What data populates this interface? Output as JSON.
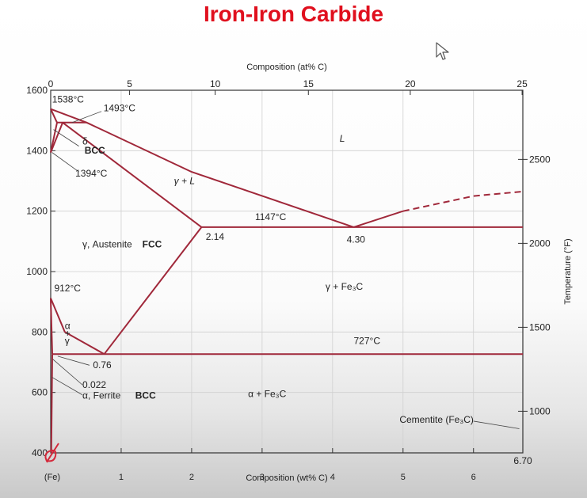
{
  "slide": {
    "title": "Iron-Iron Carbide"
  },
  "colors": {
    "title": "#e0101e",
    "curve": "#a0283a",
    "axis": "#333333",
    "grid": "#d0d0d0",
    "cursor_icon": "arrow-cursor-icon"
  },
  "chart_data": {
    "type": "line",
    "title": "",
    "xlabel": "Composition (wt% C)",
    "x2label": "Composition (at% C)",
    "ylabel": "",
    "y2label": "Temperature (°F)",
    "xlim": [
      0,
      6.7
    ],
    "ylim": [
      400,
      1600
    ],
    "x_ticks": [
      0,
      1,
      2,
      3,
      4,
      5,
      6
    ],
    "x_tick_labels": [
      "(Fe)",
      "1",
      "2",
      "3",
      "4",
      "5",
      "6"
    ],
    "x_end_label": "6.70",
    "y_ticks": [
      400,
      600,
      800,
      1000,
      1200,
      1400,
      1600
    ],
    "x2_ticks": [
      0,
      5,
      10,
      15,
      20,
      25
    ],
    "y2_ticks": [
      1000,
      1500,
      2000,
      2500
    ],
    "grid": true,
    "series": [
      {
        "id": "liquidus-left",
        "points": [
          [
            0,
            1538
          ],
          [
            0.51,
            1493
          ],
          [
            2.0,
            1330
          ],
          [
            4.3,
            1147
          ]
        ]
      },
      {
        "id": "liquidus-right",
        "points": [
          [
            4.3,
            1147
          ],
          [
            5.0,
            1200
          ],
          [
            6.0,
            1250
          ],
          [
            6.7,
            1265
          ]
        ],
        "dashed_from": 1
      },
      {
        "id": "delta-solidus",
        "points": [
          [
            0,
            1538
          ],
          [
            0.09,
            1493
          ]
        ]
      },
      {
        "id": "peritectic-line",
        "points": [
          [
            0.09,
            1493
          ],
          [
            0.51,
            1493
          ]
        ]
      },
      {
        "id": "delta-gamma-upper",
        "points": [
          [
            0.09,
            1493
          ],
          [
            0,
            1394
          ]
        ]
      },
      {
        "id": "delta-gamma-lower",
        "points": [
          [
            0.17,
            1493
          ],
          [
            0,
            1394
          ]
        ]
      },
      {
        "id": "austenite-solidus",
        "points": [
          [
            0.17,
            1493
          ],
          [
            2.14,
            1147
          ]
        ]
      },
      {
        "id": "eutectic-line",
        "points": [
          [
            2.14,
            1147
          ],
          [
            6.7,
            1147
          ]
        ]
      },
      {
        "id": "acm-line",
        "points": [
          [
            0.76,
            727
          ],
          [
            2.14,
            1147
          ]
        ]
      },
      {
        "id": "a3-line",
        "points": [
          [
            0,
            912
          ],
          [
            0.2,
            800
          ],
          [
            0.76,
            727
          ]
        ]
      },
      {
        "id": "alpha-gamma-boundary",
        "points": [
          [
            0,
            912
          ],
          [
            0.022,
            727
          ]
        ]
      },
      {
        "id": "eutectoid-line",
        "points": [
          [
            0.022,
            727
          ],
          [
            6.7,
            727
          ]
        ]
      },
      {
        "id": "solvus-line",
        "points": [
          [
            0.022,
            727
          ],
          [
            0.008,
            400
          ]
        ]
      }
    ],
    "annotations": [
      {
        "text": "1538°C",
        "x": 0.02,
        "y": 1560
      },
      {
        "text": "1493°C",
        "x": 0.75,
        "y": 1530
      },
      {
        "text": "δ",
        "x": 0.45,
        "y": 1420
      },
      {
        "text": "BCC",
        "x": 0.48,
        "y": 1390
      },
      {
        "text": "1394°C",
        "x": 0.35,
        "y": 1315
      },
      {
        "text": "L",
        "x": 4.1,
        "y": 1430
      },
      {
        "text": "γ + L",
        "x": 1.75,
        "y": 1290
      },
      {
        "text": "1147°C",
        "x": 2.9,
        "y": 1170
      },
      {
        "text": "2.14",
        "x": 2.2,
        "y": 1105
      },
      {
        "text": "4.30",
        "x": 4.2,
        "y": 1095
      },
      {
        "text": "γ, Austenite",
        "x": 0.45,
        "y": 1080
      },
      {
        "text": "FCC",
        "x": 1.3,
        "y": 1080
      },
      {
        "text": "912°C",
        "x": 0.05,
        "y": 935
      },
      {
        "text": "γ + Fe₃C",
        "x": 3.9,
        "y": 940
      },
      {
        "text": "α",
        "x": 0.2,
        "y": 810
      },
      {
        "text": "+",
        "x": 0.2,
        "y": 785
      },
      {
        "text": "γ",
        "x": 0.2,
        "y": 760
      },
      {
        "text": "727°C",
        "x": 4.3,
        "y": 760
      },
      {
        "text": "0.76",
        "x": 0.6,
        "y": 680
      },
      {
        "text": "0.022",
        "x": 0.45,
        "y": 615
      },
      {
        "text": "α, Ferrite",
        "x": 0.45,
        "y": 580
      },
      {
        "text": "BCC",
        "x": 1.2,
        "y": 580
      },
      {
        "text": "α + Fe₃C",
        "x": 2.8,
        "y": 585
      },
      {
        "text": "Cementite (Fe₃C)",
        "x": 4.95,
        "y": 500
      }
    ]
  }
}
